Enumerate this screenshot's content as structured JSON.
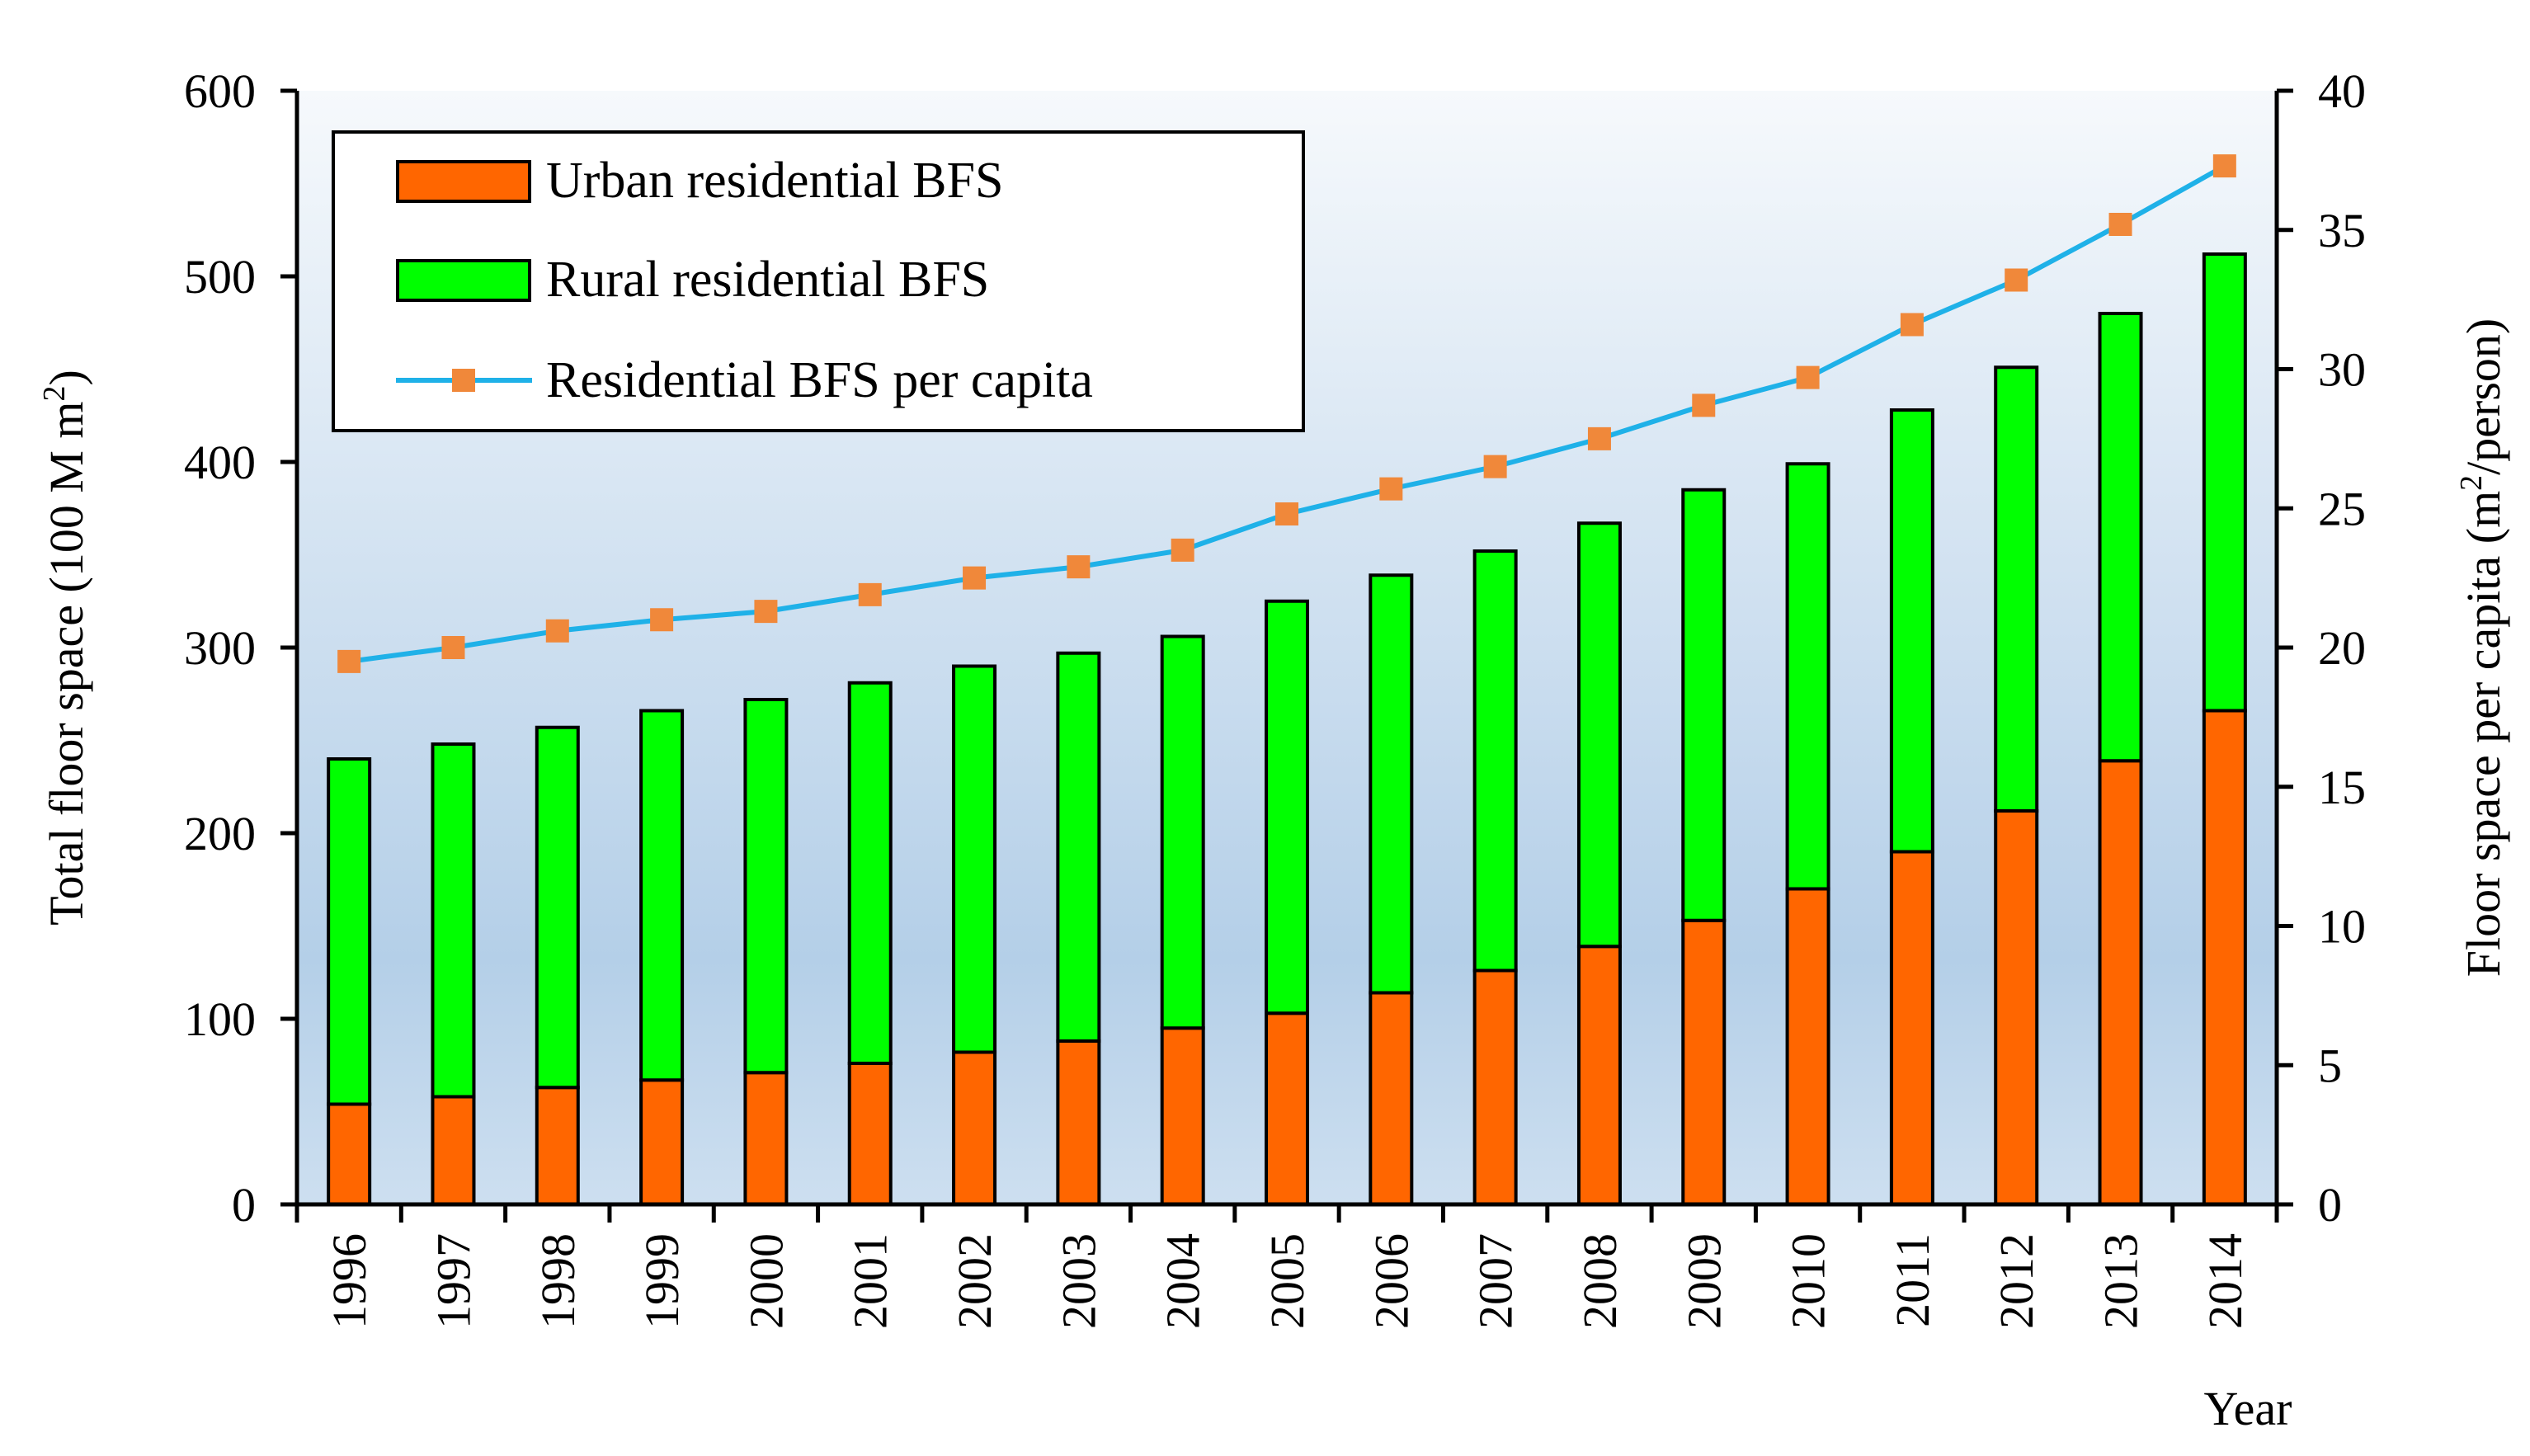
{
  "chart_data": {
    "type": "bar",
    "stacked": true,
    "categories": [
      "1996",
      "1997",
      "1998",
      "1999",
      "2000",
      "2001",
      "2002",
      "2003",
      "2004",
      "2005",
      "2006",
      "2007",
      "2008",
      "2009",
      "2010",
      "2011",
      "2012",
      "2013",
      "2014"
    ],
    "series": [
      {
        "name": "Urban residential BFS",
        "type": "bar",
        "axis": "left",
        "color": "#ff6600",
        "values": [
          54,
          58,
          63,
          67,
          71,
          76,
          82,
          88,
          95,
          103,
          114,
          126,
          139,
          153,
          170,
          190,
          212,
          239,
          266
        ]
      },
      {
        "name": "Rural residential BFS",
        "type": "bar",
        "axis": "left",
        "color": "#00ff00",
        "values": [
          186,
          190,
          194,
          199,
          201,
          205,
          208,
          209,
          211,
          222,
          225,
          226,
          228,
          232,
          229,
          238,
          239,
          241,
          246
        ]
      },
      {
        "name": "Residential BFS per capita",
        "type": "line",
        "axis": "right",
        "color": "#1fb1e8",
        "marker_color": "#f0883a",
        "values": [
          19.5,
          20.0,
          20.6,
          21.0,
          21.3,
          21.9,
          22.5,
          22.9,
          23.5,
          24.8,
          25.7,
          26.5,
          27.5,
          28.7,
          29.7,
          31.6,
          33.2,
          35.2,
          37.3
        ]
      }
    ],
    "y_left": {
      "label": "Total floor space (100 M m²)",
      "label_main": "Total floor space (100 M m",
      "label_sup": "2",
      "label_end": ")",
      "range": [
        0,
        600
      ],
      "ticks": [
        "0",
        "100",
        "200",
        "300",
        "400",
        "500",
        "600"
      ]
    },
    "y_right": {
      "label": "Floor space per capita (m²/person)",
      "label_main": "Floor space per capita (m",
      "label_sup": "2",
      "label_end": "/person)",
      "range": [
        0,
        40
      ],
      "ticks": [
        "0",
        "5",
        "10",
        "15",
        "20",
        "25",
        "30",
        "35",
        "40"
      ]
    },
    "xlabel": "Year",
    "legend_position": "top-left",
    "background": {
      "top": "#f6f9fc",
      "bottom": "#b4cfe8"
    }
  }
}
